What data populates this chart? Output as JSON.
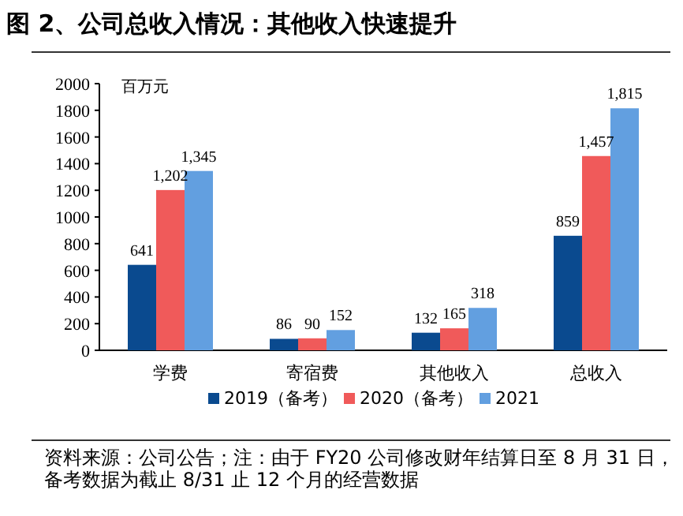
{
  "chart_data": {
    "type": "bar",
    "title": "图 2、公司总收入情况：其他收入快速提升",
    "ylabel": "百万元",
    "categories": [
      "学费",
      "寄宿费",
      "其他收入",
      "总收入"
    ],
    "series": [
      {
        "name": "2019（备考）",
        "color": "#0a4a8f",
        "values": [
          641,
          86,
          132,
          859
        ],
        "value_labels": [
          "641",
          "86",
          "132",
          "859"
        ]
      },
      {
        "name": "2020（备考）",
        "color": "#f05a5a",
        "values": [
          1202,
          90,
          165,
          1457
        ],
        "value_labels": [
          "1,202",
          "90",
          "165",
          "1,457"
        ]
      },
      {
        "name": "2021",
        "color": "#629fe0",
        "values": [
          1345,
          152,
          318,
          1815
        ],
        "value_labels": [
          "1,345",
          "152",
          "318",
          "1,815"
        ]
      }
    ],
    "ylim": [
      0,
      2000
    ],
    "yticks": [
      0,
      200,
      400,
      600,
      800,
      1000,
      1200,
      1400,
      1600,
      1800,
      2000
    ],
    "grid": false,
    "legend": "bottom",
    "annotations": [
      "资料来源：公司公告；注：由于 FY20 公司修改财年结算日至 8 月 31 日，备考数据为截止 8/31 止 12 个月的经营数据"
    ]
  }
}
